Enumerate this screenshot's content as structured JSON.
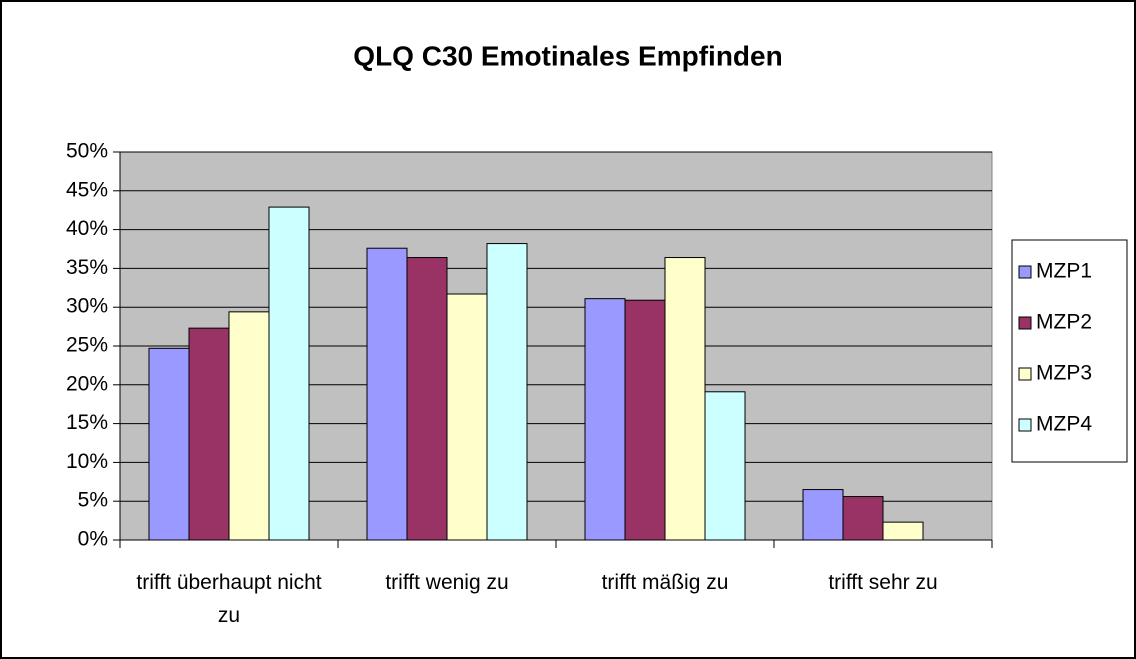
{
  "chart_data": {
    "type": "bar",
    "title": "QLQ C30 Emotinales Empfinden",
    "categories": [
      "trifft überhaupt nicht zu",
      "trifft wenig zu",
      "trifft mäßig zu",
      "trifft sehr zu"
    ],
    "series": [
      {
        "name": "MZP1",
        "color": "#9999ff",
        "values": [
          24.7,
          37.6,
          31.1,
          6.5
        ]
      },
      {
        "name": "MZP2",
        "color": "#993366",
        "values": [
          27.3,
          36.4,
          30.9,
          5.6
        ]
      },
      {
        "name": "MZP3",
        "color": "#ffffcc",
        "values": [
          29.4,
          31.7,
          36.4,
          2.3
        ]
      },
      {
        "name": "MZP4",
        "color": "#ccffff",
        "values": [
          42.9,
          38.2,
          19.1,
          0
        ]
      }
    ],
    "ylim": [
      0,
      50
    ],
    "yticks": [
      {
        "value": 0,
        "label": "0%"
      },
      {
        "value": 5,
        "label": "5%"
      },
      {
        "value": 10,
        "label": "10%"
      },
      {
        "value": 15,
        "label": "15%"
      },
      {
        "value": 20,
        "label": "20%"
      },
      {
        "value": 25,
        "label": "25%"
      },
      {
        "value": 30,
        "label": "30%"
      },
      {
        "value": 35,
        "label": "35%"
      },
      {
        "value": 40,
        "label": "40%"
      },
      {
        "value": 45,
        "label": "45%"
      },
      {
        "value": 50,
        "label": "50%"
      }
    ],
    "grid": true,
    "legend": "right"
  }
}
